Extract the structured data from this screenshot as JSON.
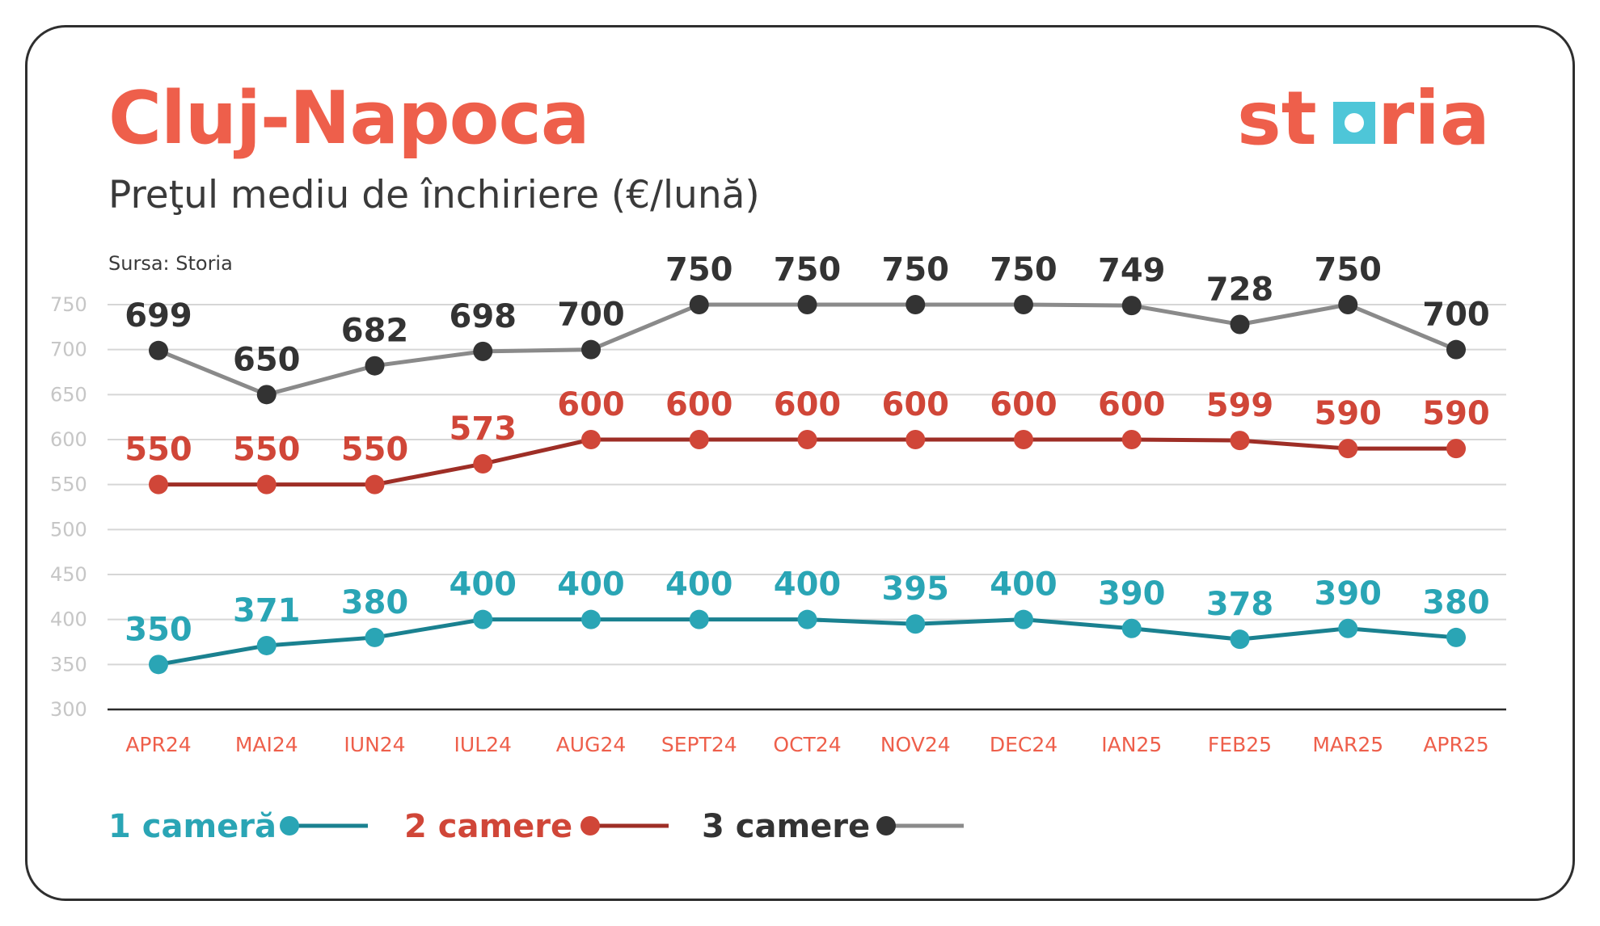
{
  "header": {
    "title": "Cluj-Napoca",
    "subtitle": "Preţul mediu de închiriere (€/lună)",
    "source": "Sursa: Storia",
    "logo": {
      "left": "st",
      "right": "ria",
      "text_color": "#ee5f4b",
      "square_color": "#4ec6d8"
    }
  },
  "chart_data": {
    "type": "line",
    "categories": [
      "APR24",
      "MAI24",
      "IUN24",
      "IUL24",
      "AUG24",
      "SEPT24",
      "OCT24",
      "NOV24",
      "DEC24",
      "IAN25",
      "FEB25",
      "MAR25",
      "APR25"
    ],
    "ylim": [
      300,
      750
    ],
    "yticks": [
      300,
      350,
      400,
      450,
      500,
      550,
      600,
      650,
      700,
      750
    ],
    "grid": true,
    "legend_position": "bottom-left",
    "series": [
      {
        "name": "1 cameră",
        "line_color": "#1a8190",
        "marker_color": "#2aa5b5",
        "values": [
          350,
          371,
          380,
          400,
          400,
          400,
          400,
          395,
          400,
          390,
          378,
          390,
          380
        ]
      },
      {
        "name": "2 camere",
        "line_color": "#9e2e26",
        "marker_color": "#d04638",
        "values": [
          550,
          550,
          550,
          573,
          600,
          600,
          600,
          600,
          600,
          600,
          599,
          590,
          590
        ]
      },
      {
        "name": "3 camere",
        "line_color": "#8a8a8a",
        "marker_color": "#333333",
        "values": [
          699,
          650,
          682,
          698,
          700,
          750,
          750,
          750,
          750,
          749,
          728,
          750,
          700
        ]
      }
    ]
  }
}
